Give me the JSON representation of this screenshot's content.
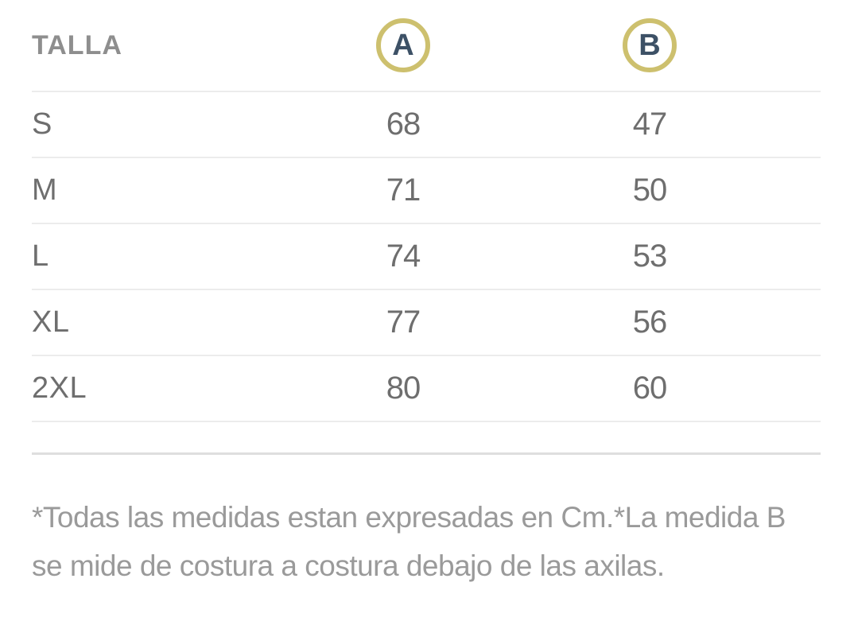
{
  "size_chart": {
    "columns": {
      "size_label": "TALLA",
      "measure_a": "A",
      "measure_b": "B"
    },
    "rows": [
      {
        "size": "S",
        "a": "68",
        "b": "47"
      },
      {
        "size": "M",
        "a": "71",
        "b": "50"
      },
      {
        "size": "L",
        "a": "74",
        "b": "53"
      },
      {
        "size": "XL",
        "a": "77",
        "b": "56"
      },
      {
        "size": "2XL",
        "a": "80",
        "b": "60"
      }
    ]
  },
  "footnote": {
    "line1": "*Todas las medidas estan expresadas en Cm.*La medida B",
    "line2": "se mide de costura a costura debajo de las axilas."
  },
  "colors": {
    "accent_gold": "#cdc06e",
    "badge_letter": "#3d5166",
    "header_text": "#8e8e8e",
    "cell_text": "#6e6e6e",
    "note_text": "#9a9a9a",
    "divider": "#ececec",
    "divider_strong": "#dedede"
  }
}
